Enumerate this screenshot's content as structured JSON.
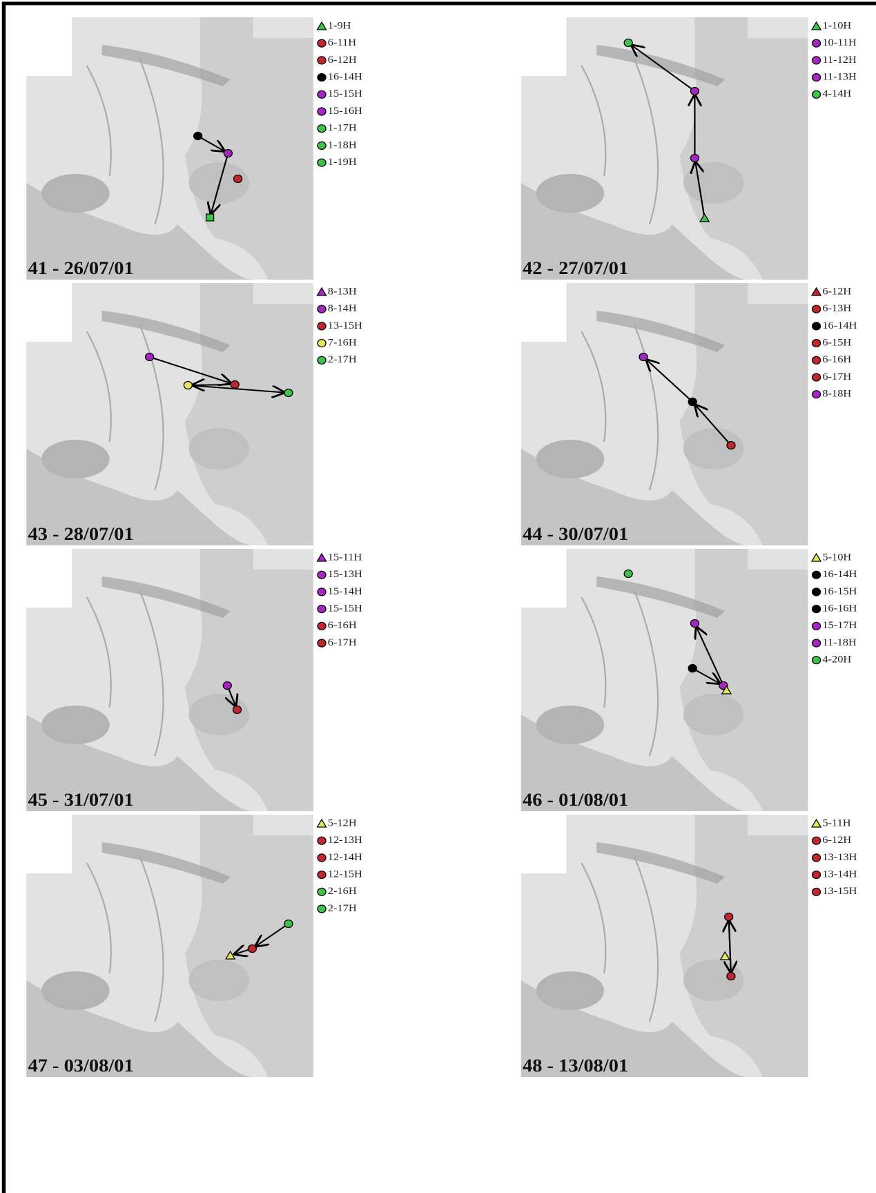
{
  "panels": [
    {
      "label": "41 - 26/07/01",
      "legend": [
        {
          "text": "1-9H",
          "shape": "triangle",
          "color": "#3fc24a"
        },
        {
          "text": "6-11H",
          "shape": "circle",
          "color": "#c1272d"
        },
        {
          "text": "6-12H",
          "shape": "circle",
          "color": "#c1272d"
        },
        {
          "text": "16-14H",
          "shape": "circle",
          "color": "#000000"
        },
        {
          "text": "15-15H",
          "shape": "circle",
          "color": "#a626c4"
        },
        {
          "text": "15-16H",
          "shape": "circle",
          "color": "#a626c4"
        },
        {
          "text": "1-17H",
          "shape": "circle",
          "color": "#3fc24a"
        },
        {
          "text": "1-18H",
          "shape": "circle",
          "color": "#3fc24a"
        },
        {
          "text": "1-19H",
          "shape": "circle",
          "color": "#3fc24a"
        }
      ]
    },
    {
      "label": "42 - 27/07/01",
      "legend": [
        {
          "text": "1-10H",
          "shape": "triangle",
          "color": "#3fc24a"
        },
        {
          "text": "10-11H",
          "shape": "circle",
          "color": "#a626c4"
        },
        {
          "text": "11-12H",
          "shape": "circle",
          "color": "#a626c4"
        },
        {
          "text": "11-13H",
          "shape": "circle",
          "color": "#a626c4"
        },
        {
          "text": "4-14H",
          "shape": "circle",
          "color": "#3fc24a"
        }
      ]
    },
    {
      "label": "43 - 28/07/01",
      "legend": [
        {
          "text": "8-13H",
          "shape": "triangle",
          "color": "#a626c4"
        },
        {
          "text": "8-14H",
          "shape": "circle",
          "color": "#a626c4"
        },
        {
          "text": "13-15H",
          "shape": "circle",
          "color": "#c1272d"
        },
        {
          "text": "7-16H",
          "shape": "circle",
          "color": "#e6e65a"
        },
        {
          "text": "2-17H",
          "shape": "circle",
          "color": "#3fc24a"
        }
      ]
    },
    {
      "label": "44 - 30/07/01",
      "legend": [
        {
          "text": "6-12H",
          "shape": "triangle",
          "color": "#c1272d"
        },
        {
          "text": "6-13H",
          "shape": "circle",
          "color": "#c1272d"
        },
        {
          "text": "16-14H",
          "shape": "circle",
          "color": "#000000"
        },
        {
          "text": "6-15H",
          "shape": "circle",
          "color": "#c1272d"
        },
        {
          "text": "6-16H",
          "shape": "circle",
          "color": "#c1272d"
        },
        {
          "text": "6-17H",
          "shape": "circle",
          "color": "#c1272d"
        },
        {
          "text": "8-18H",
          "shape": "circle",
          "color": "#a626c4"
        }
      ]
    },
    {
      "label": "45 - 31/07/01",
      "legend": [
        {
          "text": "15-11H",
          "shape": "triangle",
          "color": "#a626c4"
        },
        {
          "text": "15-13H",
          "shape": "circle",
          "color": "#a626c4"
        },
        {
          "text": "15-14H",
          "shape": "circle",
          "color": "#a626c4"
        },
        {
          "text": "15-15H",
          "shape": "circle",
          "color": "#a626c4"
        },
        {
          "text": "6-16H",
          "shape": "circle",
          "color": "#c1272d"
        },
        {
          "text": "6-17H",
          "shape": "circle",
          "color": "#c1272d"
        }
      ]
    },
    {
      "label": "46 - 01/08/01",
      "legend": [
        {
          "text": "5-10H",
          "shape": "triangle",
          "color": "#e6e65a"
        },
        {
          "text": "16-14H",
          "shape": "circle",
          "color": "#000000"
        },
        {
          "text": "16-15H",
          "shape": "circle",
          "color": "#000000"
        },
        {
          "text": "16-16H",
          "shape": "circle",
          "color": "#000000"
        },
        {
          "text": "15-17H",
          "shape": "circle",
          "color": "#a626c4"
        },
        {
          "text": "11-18H",
          "shape": "circle",
          "color": "#a626c4"
        },
        {
          "text": "4-20H",
          "shape": "circle",
          "color": "#3fc24a"
        }
      ]
    },
    {
      "label": "47 - 03/08/01",
      "legend": [
        {
          "text": "5-12H",
          "shape": "triangle",
          "color": "#e6e65a"
        },
        {
          "text": "12-13H",
          "shape": "circle",
          "color": "#c1272d"
        },
        {
          "text": "12-14H",
          "shape": "circle",
          "color": "#c1272d"
        },
        {
          "text": "12-15H",
          "shape": "circle",
          "color": "#c1272d"
        },
        {
          "text": "2-16H",
          "shape": "circle",
          "color": "#3fc24a"
        },
        {
          "text": "2-17H",
          "shape": "circle",
          "color": "#3fc24a"
        }
      ]
    },
    {
      "label": "48 - 13/08/01",
      "legend": [
        {
          "text": "5-11H",
          "shape": "triangle",
          "color": "#e6e65a"
        },
        {
          "text": "6-12H",
          "shape": "circle",
          "color": "#c1272d"
        },
        {
          "text": "13-13H",
          "shape": "circle",
          "color": "#c1272d"
        },
        {
          "text": "13-14H",
          "shape": "circle",
          "color": "#c1272d"
        },
        {
          "text": "13-15H",
          "shape": "circle",
          "color": "#c1272d"
        }
      ]
    }
  ]
}
